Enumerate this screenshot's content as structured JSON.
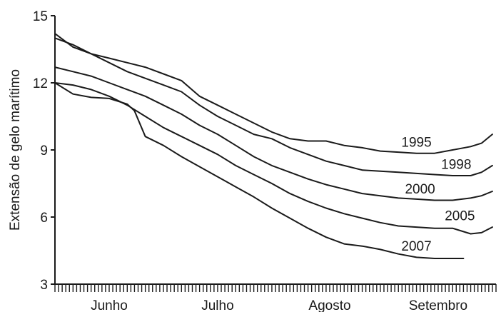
{
  "chart_data": {
    "type": "line",
    "xlabel": "",
    "ylabel": "Extensão de gelo marítimo",
    "ylim": [
      3,
      15
    ],
    "yticks": [
      3,
      6,
      9,
      12,
      15
    ],
    "x_domain": [
      0,
      122
    ],
    "x_categories": [
      {
        "label": "Junho",
        "center": 15
      },
      {
        "label": "Julho",
        "center": 45
      },
      {
        "label": "Agosto",
        "center": 76
      },
      {
        "label": "Setembro",
        "center": 106
      }
    ],
    "series": [
      {
        "name": "1995",
        "x": [
          0,
          5,
          10,
          15,
          20,
          25,
          30,
          35,
          40,
          45,
          50,
          55,
          60,
          65,
          70,
          75,
          80,
          85,
          90,
          95,
          100,
          105,
          110,
          115,
          118,
          121
        ],
        "y": [
          14.2,
          13.6,
          13.3,
          13.1,
          12.9,
          12.7,
          12.4,
          12.1,
          11.4,
          11.0,
          10.6,
          10.2,
          9.8,
          9.5,
          9.4,
          9.4,
          9.2,
          9.1,
          8.95,
          8.9,
          8.85,
          8.85,
          9.0,
          9.15,
          9.3,
          9.7
        ]
      },
      {
        "name": "1998",
        "x": [
          0,
          5,
          10,
          15,
          20,
          25,
          30,
          35,
          40,
          45,
          50,
          55,
          60,
          65,
          70,
          75,
          80,
          85,
          90,
          95,
          100,
          105,
          110,
          115,
          118,
          121
        ],
        "y": [
          14.0,
          13.7,
          13.3,
          12.9,
          12.5,
          12.2,
          11.9,
          11.6,
          11.0,
          10.5,
          10.1,
          9.7,
          9.5,
          9.1,
          8.8,
          8.5,
          8.3,
          8.1,
          8.05,
          8.0,
          7.95,
          7.9,
          7.85,
          7.85,
          8.0,
          8.3
        ]
      },
      {
        "name": "2000",
        "x": [
          0,
          5,
          10,
          15,
          20,
          25,
          30,
          35,
          40,
          45,
          50,
          55,
          60,
          65,
          70,
          75,
          80,
          85,
          90,
          95,
          100,
          105,
          110,
          115,
          118,
          121
        ],
        "y": [
          12.7,
          12.5,
          12.3,
          12.0,
          11.7,
          11.4,
          11.0,
          10.6,
          10.1,
          9.7,
          9.2,
          8.7,
          8.3,
          8.0,
          7.7,
          7.45,
          7.25,
          7.05,
          6.95,
          6.85,
          6.8,
          6.75,
          6.75,
          6.85,
          6.95,
          7.15
        ]
      },
      {
        "name": "2005",
        "x": [
          0,
          5,
          10,
          15,
          20,
          25,
          30,
          35,
          40,
          45,
          50,
          55,
          60,
          65,
          70,
          75,
          80,
          85,
          90,
          95,
          100,
          105,
          110,
          115,
          118,
          121
        ],
        "y": [
          12.0,
          11.9,
          11.7,
          11.4,
          11.0,
          10.5,
          10.0,
          9.6,
          9.2,
          8.8,
          8.3,
          7.9,
          7.5,
          7.05,
          6.7,
          6.4,
          6.15,
          5.95,
          5.75,
          5.6,
          5.55,
          5.5,
          5.5,
          5.25,
          5.3,
          5.55
        ]
      },
      {
        "name": "2007",
        "x": [
          0,
          5,
          10,
          15,
          20,
          22,
          25,
          30,
          35,
          40,
          45,
          50,
          55,
          60,
          65,
          70,
          75,
          80,
          85,
          90,
          95,
          100,
          105,
          110,
          113
        ],
        "y": [
          12.0,
          11.5,
          11.35,
          11.3,
          11.05,
          10.75,
          9.6,
          9.2,
          8.7,
          8.25,
          7.8,
          7.35,
          6.9,
          6.4,
          5.95,
          5.5,
          5.1,
          4.8,
          4.7,
          4.55,
          4.35,
          4.2,
          4.15,
          4.15,
          4.15
        ]
      }
    ],
    "series_label_positions": [
      {
        "name": "1995",
        "x": 100,
        "y": 9.15
      },
      {
        "name": "1998",
        "x": 111,
        "y": 8.15
      },
      {
        "name": "2000",
        "x": 101,
        "y": 7.05
      },
      {
        "name": "2005",
        "x": 112,
        "y": 5.85
      },
      {
        "name": "2007",
        "x": 100,
        "y": 4.5
      }
    ]
  }
}
